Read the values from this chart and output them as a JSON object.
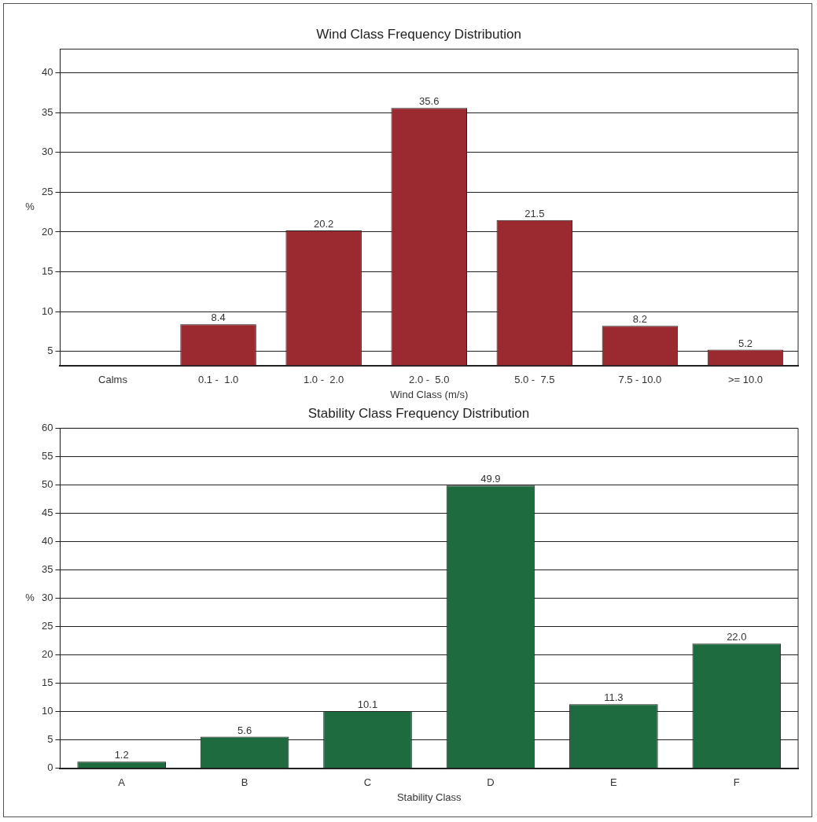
{
  "chart_data": [
    {
      "type": "bar",
      "title": "Wind Class Frequency Distribution",
      "xlabel": "Wind Class (m/s)",
      "ylabel": "%",
      "categories": [
        "Calms",
        "0.1 -  1.0",
        "1.0 -  2.0",
        "2.0 -  5.0",
        "5.0 -  7.5",
        "7.5 - 10.0",
        ">= 10.0"
      ],
      "values": [
        null,
        8.4,
        20.2,
        35.6,
        21.5,
        8.2,
        5.2
      ],
      "value_labels": [
        null,
        "8.4",
        "20.2",
        "35.6",
        "21.5",
        "8.2",
        "5.2"
      ],
      "color": "#9b2a30",
      "ylim": [
        3.2,
        43
      ],
      "yticks": [
        5,
        10,
        15,
        20,
        25,
        30,
        35,
        40
      ],
      "grid": "y"
    },
    {
      "type": "bar",
      "title": "Stability Class Frequency Distribution",
      "xlabel": "Stability Class",
      "ylabel": "%",
      "categories": [
        "A",
        "B",
        "C",
        "D",
        "E",
        "F"
      ],
      "values": [
        1.2,
        5.6,
        10.1,
        49.9,
        11.3,
        22.0
      ],
      "value_labels": [
        "1.2",
        "5.6",
        "10.1",
        "49.9",
        "11.3",
        "22.0"
      ],
      "color": "#1e6b3f",
      "ylim": [
        0,
        60
      ],
      "yticks": [
        0,
        5,
        10,
        15,
        20,
        25,
        30,
        35,
        40,
        45,
        50,
        55,
        60
      ],
      "grid": "y"
    }
  ]
}
